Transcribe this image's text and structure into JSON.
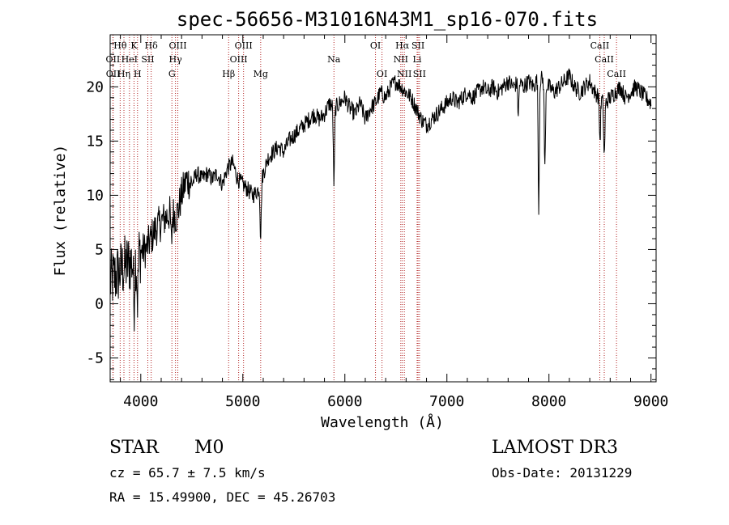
{
  "chart_data": {
    "type": "line",
    "title": "spec-56656-M31016N43M1_sp16-070.fits",
    "xlabel": "Wavelength (Å)",
    "ylabel": "Flux (relative)",
    "xlim": [
      3700,
      9050
    ],
    "ylim": [
      -7.2,
      24.8
    ],
    "xticks": [
      4000,
      5000,
      6000,
      7000,
      8000,
      9000
    ],
    "yticks": [
      -5,
      0,
      5,
      10,
      15,
      20
    ],
    "spectrum": {
      "name": "flux",
      "x": [
        3700,
        3750,
        3800,
        3850,
        3900,
        3950,
        4000,
        4050,
        4100,
        4150,
        4200,
        4250,
        4300,
        4350,
        4400,
        4450,
        4500,
        4550,
        4600,
        4650,
        4700,
        4750,
        4800,
        4850,
        4900,
        4950,
        5000,
        5050,
        5100,
        5150,
        5200,
        5250,
        5300,
        5350,
        5400,
        5450,
        5500,
        5550,
        5600,
        5650,
        5700,
        5750,
        5800,
        5850,
        5900,
        5950,
        6000,
        6050,
        6100,
        6150,
        6200,
        6250,
        6300,
        6350,
        6400,
        6450,
        6500,
        6550,
        6600,
        6650,
        6700,
        6750,
        6800,
        6850,
        6900,
        6950,
        7000,
        7050,
        7100,
        7150,
        7200,
        7250,
        7300,
        7350,
        7400,
        7450,
        7500,
        7550,
        7600,
        7650,
        7700,
        7750,
        7800,
        7850,
        7900,
        7950,
        8000,
        8050,
        8100,
        8150,
        8200,
        8250,
        8300,
        8350,
        8400,
        8450,
        8500,
        8550,
        8600,
        8650,
        8700,
        8750,
        8800,
        8850,
        8900,
        8950,
        9000
      ],
      "y": [
        2.0,
        2.5,
        3.0,
        3.5,
        3.8,
        4.2,
        4.8,
        5.0,
        6.0,
        7.0,
        7.5,
        8.0,
        8.5,
        8.0,
        10.0,
        11.5,
        11.0,
        12.0,
        11.5,
        12.0,
        11.5,
        12.0,
        11.0,
        12.5,
        13.0,
        11.5,
        11.0,
        10.5,
        10.0,
        10.5,
        12.0,
        13.5,
        14.0,
        14.5,
        14.0,
        15.0,
        15.5,
        16.0,
        16.5,
        17.0,
        17.5,
        17.0,
        17.5,
        18.5,
        18.0,
        18.5,
        19.0,
        18.0,
        17.5,
        18.5,
        17.0,
        18.0,
        18.5,
        19.5,
        19.0,
        20.0,
        20.5,
        20.0,
        19.5,
        19.0,
        18.0,
        17.0,
        16.5,
        17.0,
        17.5,
        18.0,
        18.5,
        19.0,
        18.5,
        19.0,
        19.5,
        19.0,
        19.5,
        20.0,
        19.5,
        20.0,
        19.5,
        20.0,
        20.5,
        20.0,
        20.5,
        20.0,
        20.5,
        20.0,
        21.0,
        20.5,
        20.0,
        19.5,
        20.0,
        20.5,
        21.0,
        20.0,
        19.5,
        20.0,
        20.5,
        19.5,
        19.0,
        18.5,
        19.0,
        19.5,
        20.0,
        19.0,
        19.5,
        20.0,
        19.5,
        19.0,
        18.5
      ]
    },
    "absorption_features": [
      {
        "x": 3934,
        "depth": 4
      },
      {
        "x": 3968,
        "depth": 4
      },
      {
        "x": 4300,
        "depth": 3
      },
      {
        "x": 5175,
        "depth": 5
      },
      {
        "x": 5893,
        "depth": 7
      },
      {
        "x": 7700,
        "depth": 3
      },
      {
        "x": 7900,
        "depth": 12
      },
      {
        "x": 7960,
        "depth": 8
      },
      {
        "x": 8500,
        "depth": 4
      },
      {
        "x": 8542,
        "depth": 5
      }
    ],
    "spectral_lines": [
      {
        "label": "Hθ",
        "x": 3798,
        "row": 0
      },
      {
        "label": "K",
        "x": 3934,
        "row": 0
      },
      {
        "label": "Hδ",
        "x": 4102,
        "row": 0
      },
      {
        "label": "OIII",
        "x": 4363,
        "row": 0
      },
      {
        "label": "OIII",
        "x": 5007,
        "row": 0
      },
      {
        "label": "OI",
        "x": 6300,
        "row": 0
      },
      {
        "label": "Hα",
        "x": 6563,
        "row": 0
      },
      {
        "label": "SII",
        "x": 6717,
        "row": 0
      },
      {
        "label": "CaII",
        "x": 8498,
        "row": 0
      },
      {
        "label": "OII",
        "x": 3727,
        "row": 1
      },
      {
        "label": "HeI",
        "x": 3889,
        "row": 1
      },
      {
        "label": "SII",
        "x": 4069,
        "row": 1
      },
      {
        "label": "Hγ",
        "x": 4340,
        "row": 1
      },
      {
        "label": "OIII",
        "x": 4959,
        "row": 1
      },
      {
        "label": "Na",
        "x": 5893,
        "row": 1
      },
      {
        "label": "NII",
        "x": 6548,
        "row": 1
      },
      {
        "label": "Li",
        "x": 6708,
        "row": 1
      },
      {
        "label": "CaII",
        "x": 8542,
        "row": 1
      },
      {
        "label": "OII",
        "x": 3729,
        "row": 2
      },
      {
        "label": "Hη",
        "x": 3835,
        "row": 2
      },
      {
        "label": "H",
        "x": 3968,
        "row": 2
      },
      {
        "label": "G",
        "x": 4305,
        "row": 2
      },
      {
        "label": "Hβ",
        "x": 4861,
        "row": 2
      },
      {
        "label": "Mg",
        "x": 5175,
        "row": 2
      },
      {
        "label": "OI",
        "x": 6364,
        "row": 2
      },
      {
        "label": "NII",
        "x": 6583,
        "row": 2
      },
      {
        "label": "SII",
        "x": 6731,
        "row": 2
      },
      {
        "label": "CaII",
        "x": 8662,
        "row": 2
      }
    ]
  },
  "info": {
    "class_label": "STAR",
    "subclass": "M0",
    "survey": "LAMOST DR3",
    "redshift_line": "cz = 65.7 ± 7.5 km/s",
    "obs_date": "Obs-Date: 20131229",
    "coords": "RA =  15.49900, DEC =  45.26703"
  }
}
